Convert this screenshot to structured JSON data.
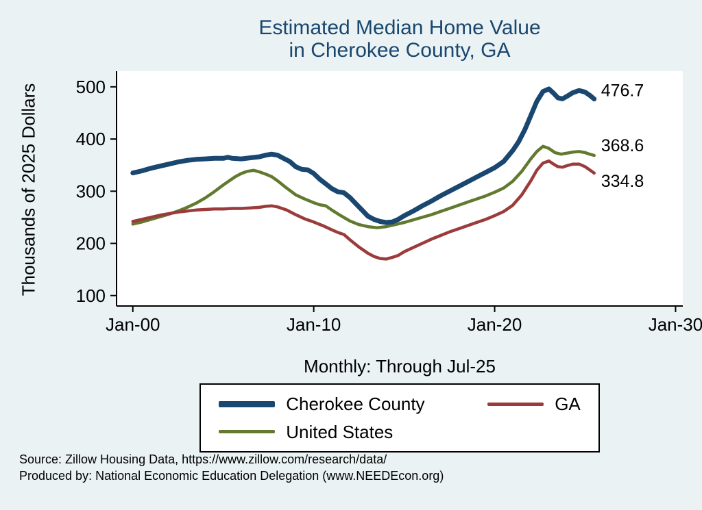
{
  "title": {
    "line1": "Estimated Median Home Value",
    "line2": "in Cherokee County, GA"
  },
  "axes": {
    "y_label": "Thousands of 2025 Dollars",
    "x_subtitle": "Monthly: Through Jul-25"
  },
  "legend": {
    "items": [
      {
        "label": "Cherokee County",
        "color": "#1a476f",
        "thick": true
      },
      {
        "label": "GA",
        "color": "#9c3b3b",
        "thick": false
      },
      {
        "label": "United States",
        "color": "#627a2f",
        "thick": false
      }
    ]
  },
  "footer": {
    "line1": "Source: Zillow Housing Data, https://www.zillow.com/research/data/",
    "line2": "Produced by: National Economic Education Delegation (www.NEEDEcon.org)"
  },
  "colors": {
    "background": "#eaf2f3",
    "plot_background": "#ffffff",
    "title": "#1a476f",
    "axis": "#000000"
  },
  "chart_data": {
    "type": "line",
    "title": "Estimated Median Home Value in Cherokee County, GA",
    "xlabel": "Monthly: Through Jul-25",
    "ylabel": "Thousands of 2025 Dollars",
    "grid": false,
    "legend_position": "bottom",
    "xlim": [
      1999.1,
      2030.4
    ],
    "ylim": [
      80,
      530
    ],
    "xticks": [
      {
        "v": 2000,
        "label": "Jan-00"
      },
      {
        "v": 2010,
        "label": "Jan-10"
      },
      {
        "v": 2020,
        "label": "Jan-20"
      },
      {
        "v": 2030,
        "label": "Jan-30"
      }
    ],
    "yticks": [
      {
        "v": 100,
        "label": "100"
      },
      {
        "v": 200,
        "label": "200"
      },
      {
        "v": 300,
        "label": "300"
      },
      {
        "v": 400,
        "label": "400"
      },
      {
        "v": 500,
        "label": "500"
      }
    ],
    "series": [
      {
        "name": "United States",
        "color": "#627a2f",
        "width": 4.5,
        "end_label": "368.6",
        "end_label_dy": -14,
        "points": [
          [
            2000,
            237
          ],
          [
            2000.5,
            241
          ],
          [
            2001,
            246
          ],
          [
            2001.5,
            251
          ],
          [
            2002,
            256
          ],
          [
            2002.5,
            262
          ],
          [
            2003,
            269
          ],
          [
            2003.5,
            277
          ],
          [
            2004,
            287
          ],
          [
            2004.5,
            299
          ],
          [
            2005,
            312
          ],
          [
            2005.33,
            320
          ],
          [
            2005.67,
            328
          ],
          [
            2006,
            334
          ],
          [
            2006.33,
            338
          ],
          [
            2006.67,
            340
          ],
          [
            2007,
            337
          ],
          [
            2007.33,
            333
          ],
          [
            2007.67,
            328
          ],
          [
            2008,
            320
          ],
          [
            2008.5,
            306
          ],
          [
            2009,
            293
          ],
          [
            2009.5,
            285
          ],
          [
            2010,
            278
          ],
          [
            2010.33,
            274
          ],
          [
            2010.67,
            272
          ],
          [
            2011,
            264
          ],
          [
            2011.5,
            253
          ],
          [
            2012,
            243
          ],
          [
            2012.5,
            236
          ],
          [
            2013,
            232
          ],
          [
            2013.5,
            230
          ],
          [
            2014,
            232
          ],
          [
            2014.5,
            236
          ],
          [
            2015,
            240
          ],
          [
            2015.5,
            245
          ],
          [
            2016,
            250
          ],
          [
            2016.5,
            255
          ],
          [
            2017,
            261
          ],
          [
            2017.5,
            267
          ],
          [
            2018,
            273
          ],
          [
            2018.5,
            279
          ],
          [
            2019,
            285
          ],
          [
            2019.5,
            291
          ],
          [
            2020,
            298
          ],
          [
            2020.5,
            306
          ],
          [
            2021,
            319
          ],
          [
            2021.5,
            338
          ],
          [
            2022,
            362
          ],
          [
            2022.33,
            376
          ],
          [
            2022.67,
            386
          ],
          [
            2023,
            382
          ],
          [
            2023.33,
            374
          ],
          [
            2023.67,
            371
          ],
          [
            2024,
            373
          ],
          [
            2024.33,
            375
          ],
          [
            2024.67,
            376
          ],
          [
            2025,
            374
          ],
          [
            2025.25,
            371
          ],
          [
            2025.5,
            368.6
          ]
        ]
      },
      {
        "name": "GA",
        "color": "#9c3b3b",
        "width": 4.5,
        "end_label": "334.8",
        "end_label_dy": 12,
        "points": [
          [
            2000,
            242
          ],
          [
            2000.5,
            246
          ],
          [
            2001,
            250
          ],
          [
            2001.5,
            254
          ],
          [
            2002,
            257
          ],
          [
            2002.5,
            260
          ],
          [
            2003,
            262
          ],
          [
            2003.5,
            264
          ],
          [
            2004,
            265
          ],
          [
            2004.5,
            266
          ],
          [
            2005,
            266
          ],
          [
            2005.5,
            267
          ],
          [
            2006,
            267
          ],
          [
            2006.5,
            268
          ],
          [
            2007,
            269
          ],
          [
            2007.33,
            271
          ],
          [
            2007.67,
            272
          ],
          [
            2008,
            270
          ],
          [
            2008.5,
            264
          ],
          [
            2009,
            255
          ],
          [
            2009.5,
            247
          ],
          [
            2010,
            241
          ],
          [
            2010.5,
            234
          ],
          [
            2011,
            226
          ],
          [
            2011.33,
            221
          ],
          [
            2011.67,
            217
          ],
          [
            2012,
            207
          ],
          [
            2012.5,
            193
          ],
          [
            2013,
            181
          ],
          [
            2013.33,
            175
          ],
          [
            2013.67,
            171
          ],
          [
            2014,
            170
          ],
          [
            2014.33,
            173
          ],
          [
            2014.67,
            177
          ],
          [
            2015,
            184
          ],
          [
            2015.5,
            192
          ],
          [
            2016,
            200
          ],
          [
            2016.5,
            208
          ],
          [
            2017,
            215
          ],
          [
            2017.5,
            222
          ],
          [
            2018,
            228
          ],
          [
            2018.5,
            234
          ],
          [
            2019,
            240
          ],
          [
            2019.5,
            246
          ],
          [
            2020,
            253
          ],
          [
            2020.5,
            261
          ],
          [
            2021,
            273
          ],
          [
            2021.5,
            293
          ],
          [
            2022,
            320
          ],
          [
            2022.33,
            340
          ],
          [
            2022.67,
            354
          ],
          [
            2023,
            358
          ],
          [
            2023.25,
            352
          ],
          [
            2023.5,
            347
          ],
          [
            2023.75,
            346
          ],
          [
            2024,
            349
          ],
          [
            2024.33,
            352
          ],
          [
            2024.67,
            352
          ],
          [
            2025,
            347
          ],
          [
            2025.25,
            341
          ],
          [
            2025.5,
            334.8
          ]
        ]
      },
      {
        "name": "Cherokee County",
        "color": "#1a476f",
        "width": 7,
        "end_label": "476.7",
        "end_label_dy": -12,
        "points": [
          [
            2000,
            335
          ],
          [
            2000.5,
            339
          ],
          [
            2001,
            344
          ],
          [
            2001.5,
            348
          ],
          [
            2002,
            352
          ],
          [
            2002.5,
            356
          ],
          [
            2003,
            359
          ],
          [
            2003.5,
            361
          ],
          [
            2004,
            362
          ],
          [
            2004.5,
            363
          ],
          [
            2005,
            363
          ],
          [
            2005.25,
            365
          ],
          [
            2005.5,
            363
          ],
          [
            2006,
            362
          ],
          [
            2006.5,
            364
          ],
          [
            2007,
            366
          ],
          [
            2007.33,
            369
          ],
          [
            2007.67,
            371
          ],
          [
            2008,
            369
          ],
          [
            2008.33,
            363
          ],
          [
            2008.67,
            357
          ],
          [
            2009,
            347
          ],
          [
            2009.33,
            342
          ],
          [
            2009.67,
            341
          ],
          [
            2010,
            334
          ],
          [
            2010.33,
            323
          ],
          [
            2010.67,
            314
          ],
          [
            2011,
            305
          ],
          [
            2011.33,
            299
          ],
          [
            2011.67,
            297
          ],
          [
            2012,
            288
          ],
          [
            2012.33,
            276
          ],
          [
            2012.67,
            264
          ],
          [
            2013,
            252
          ],
          [
            2013.33,
            246
          ],
          [
            2013.67,
            242
          ],
          [
            2014,
            240
          ],
          [
            2014.33,
            241
          ],
          [
            2014.67,
            246
          ],
          [
            2015,
            253
          ],
          [
            2015.5,
            262
          ],
          [
            2016,
            272
          ],
          [
            2016.5,
            281
          ],
          [
            2017,
            291
          ],
          [
            2017.5,
            300
          ],
          [
            2018,
            309
          ],
          [
            2018.5,
            318
          ],
          [
            2019,
            327
          ],
          [
            2019.5,
            336
          ],
          [
            2020,
            345
          ],
          [
            2020.5,
            357
          ],
          [
            2021,
            378
          ],
          [
            2021.33,
            395
          ],
          [
            2021.67,
            418
          ],
          [
            2022,
            445
          ],
          [
            2022.33,
            472
          ],
          [
            2022.67,
            491
          ],
          [
            2023,
            496
          ],
          [
            2023.25,
            488
          ],
          [
            2023.5,
            479
          ],
          [
            2023.75,
            477
          ],
          [
            2024,
            482
          ],
          [
            2024.33,
            489
          ],
          [
            2024.67,
            493
          ],
          [
            2025,
            490
          ],
          [
            2025.25,
            484
          ],
          [
            2025.5,
            476.7
          ]
        ]
      }
    ]
  }
}
